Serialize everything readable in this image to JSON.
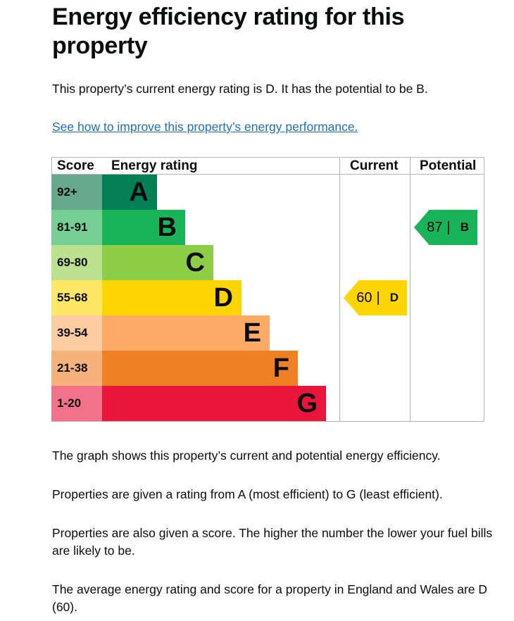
{
  "page": {
    "title": "Energy efficiency rating for this property",
    "intro": "This property’s current energy rating is D. It has the potential to be B.",
    "improve_link": "See how to improve this property’s energy performance.",
    "paragraphs": [
      "The graph shows this property’s current and potential energy efficiency.",
      "Properties are given a rating from A (most efficient) to G (least efficient).",
      "Properties are also given a score. The higher the number the lower your fuel bills are likely to be.",
      "The average energy rating and score for a property in England and Wales are D (60)."
    ]
  },
  "chart": {
    "headers": {
      "score": "Score",
      "rating": "Energy rating",
      "current": "Current",
      "potential": "Potential"
    },
    "bands": [
      {
        "score": "92+",
        "letter": "A",
        "color": "#008054",
        "light": "#66a98c"
      },
      {
        "score": "81-91",
        "letter": "B",
        "color": "#19b459",
        "light": "#75cf95"
      },
      {
        "score": "69-80",
        "letter": "C",
        "color": "#8dce46",
        "light": "#bce290"
      },
      {
        "score": "55-68",
        "letter": "D",
        "color": "#ffd500",
        "light": "#ffe766"
      },
      {
        "score": "39-54",
        "letter": "E",
        "color": "#fcaa65",
        "light": "#fdcca3"
      },
      {
        "score": "21-38",
        "letter": "F",
        "color": "#ef8023",
        "light": "#f5b37b"
      },
      {
        "score": "1-20",
        "letter": "G",
        "color": "#e9153b",
        "light": "#f27389"
      }
    ],
    "current": {
      "score": "60",
      "separator": "|",
      "letter": "D",
      "band_index": 3,
      "color": "#ffd500"
    },
    "potential": {
      "score": "87",
      "separator": "|",
      "letter": "B",
      "band_index": 1,
      "color": "#19b459"
    }
  }
}
